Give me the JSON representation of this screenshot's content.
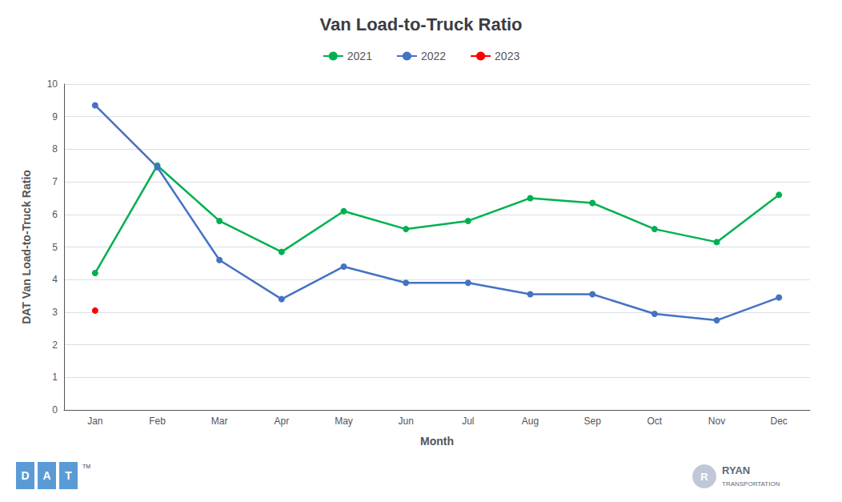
{
  "chart_data": {
    "type": "line",
    "title": "Van Load-to-Truck Ratio",
    "x_label": "Month",
    "y_label": "DAT Van Load-to-Truck Ratio",
    "categories": [
      "Jan",
      "Feb",
      "Mar",
      "Apr",
      "May",
      "Jun",
      "Jul",
      "Aug",
      "Sep",
      "Oct",
      "Nov",
      "Dec"
    ],
    "series": [
      {
        "name": "2021",
        "color": "#00b050",
        "marker": "circle",
        "values": [
          4.2,
          7.5,
          5.8,
          4.85,
          6.1,
          5.55,
          5.8,
          6.5,
          6.35,
          5.55,
          5.15,
          6.6
        ]
      },
      {
        "name": "2022",
        "color": "#4472c4",
        "marker": "circle",
        "values": [
          9.35,
          7.45,
          4.6,
          3.4,
          4.4,
          3.9,
          3.9,
          3.55,
          3.55,
          2.95,
          2.75,
          3.45
        ]
      },
      {
        "name": "2023",
        "color": "#ff0000",
        "marker": "circle",
        "values": [
          3.05,
          null,
          null,
          null,
          null,
          null,
          null,
          null,
          null,
          null,
          null,
          null
        ]
      }
    ],
    "ylim": [
      0,
      10
    ],
    "yticks": [
      0,
      1,
      2,
      3,
      4,
      5,
      6,
      7,
      8,
      9,
      10
    ],
    "grid": true,
    "legend": "top",
    "annotations": [
      "D",
      "A",
      "T",
      "TM",
      "R",
      "RYAN",
      "TRANSPORTATION"
    ]
  }
}
